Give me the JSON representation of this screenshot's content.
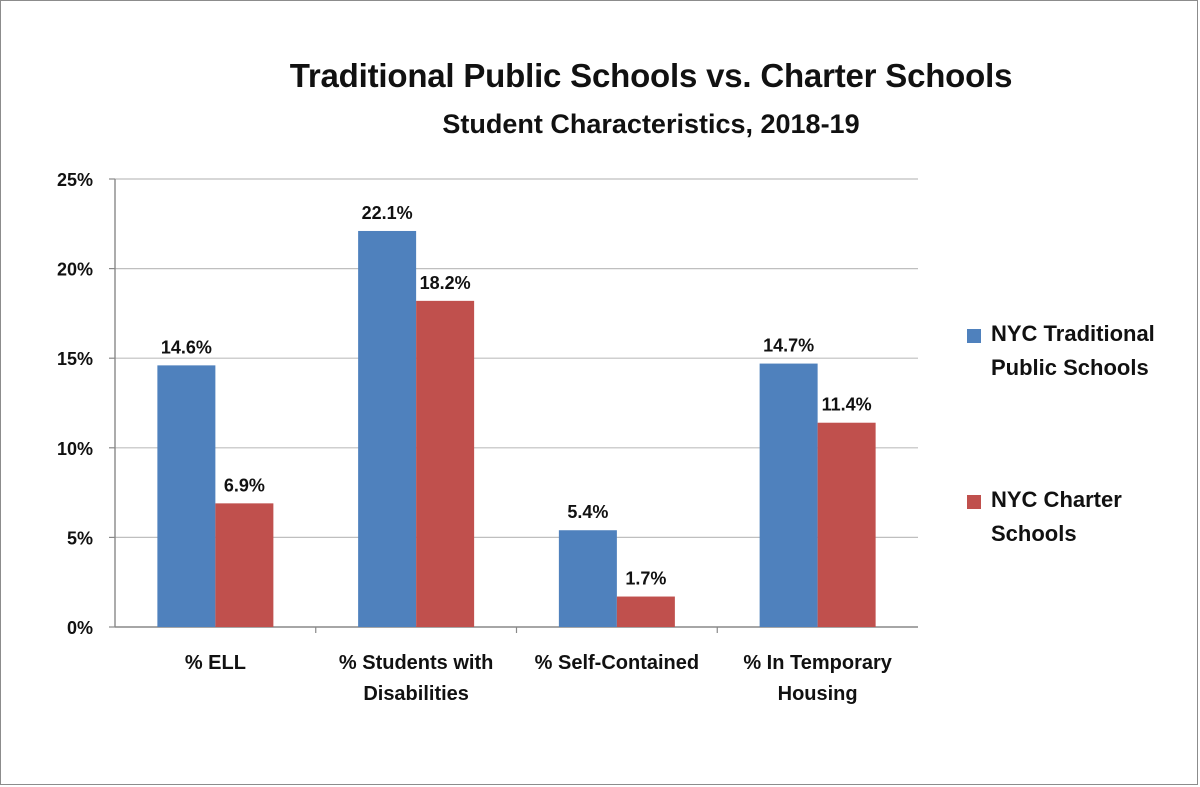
{
  "chart_data": {
    "type": "bar",
    "title": "Traditional  Public Schools vs. Charter Schools",
    "subtitle": "Student Characteristics, 2018-19",
    "categories": [
      [
        "% ELL"
      ],
      [
        "% Students with",
        "Disabilities"
      ],
      [
        "% Self-Contained"
      ],
      [
        "% In Temporary",
        "Housing"
      ]
    ],
    "series": [
      {
        "name": "NYC Traditional Public Schools",
        "legend_lines": [
          "NYC Traditional",
          "Public Schools"
        ],
        "color": "#4F81BD",
        "values": [
          14.6,
          22.1,
          5.4,
          14.7
        ],
        "labels": [
          "14.6%",
          "22.1%",
          "5.4%",
          "14.7%"
        ]
      },
      {
        "name": "NYC Charter Schools",
        "legend_lines": [
          "NYC Charter",
          "Schools"
        ],
        "color": "#C0504D",
        "values": [
          6.9,
          18.2,
          1.7,
          11.4
        ],
        "labels": [
          "6.9%",
          "18.2%",
          "1.7%",
          "11.4%"
        ]
      }
    ],
    "y_ticks": [
      "0%",
      "5%",
      "10%",
      "15%",
      "20%",
      "25%"
    ],
    "ylim": [
      0,
      25
    ],
    "grid": true,
    "legend": "right"
  }
}
